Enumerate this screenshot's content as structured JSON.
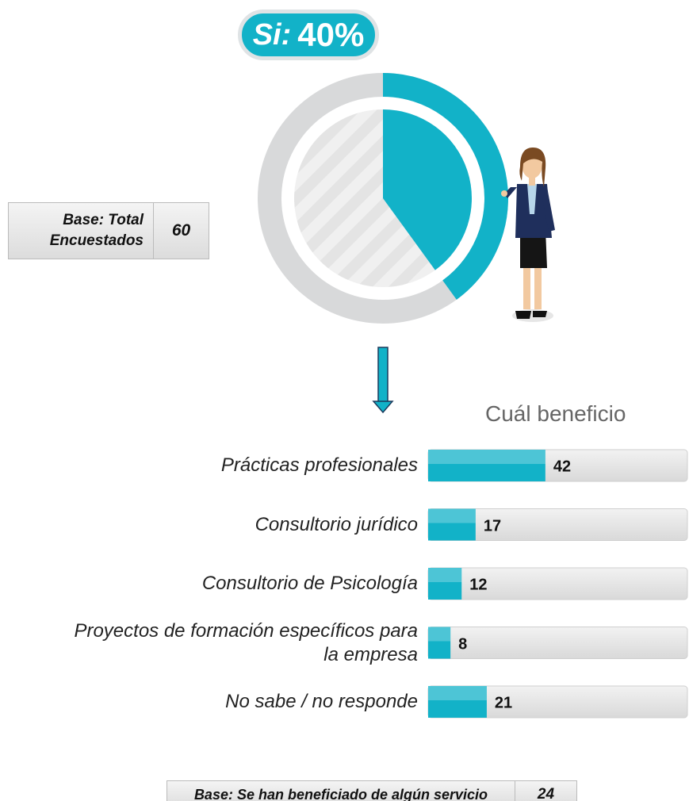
{
  "chart_data": [
    {
      "type": "donut",
      "categories": [
        "Si:"
      ],
      "values": [
        40
      ],
      "value_labels": [
        "40%"
      ],
      "color": "#12b2c8",
      "base": {
        "label": "Base: Total Encuestados",
        "value": 60
      }
    },
    {
      "type": "bar",
      "title": "Cuál beneficio",
      "categories": [
        "Prácticas profesionales",
        "Consultorio jurídico",
        "Consultorio de Psicología",
        "Proyectos de formación específicos para la empresa",
        "No sabe / no responde"
      ],
      "values": [
        42,
        17,
        12,
        8,
        21
      ],
      "xlim": [
        0,
        100
      ],
      "color": "#12b2c8",
      "base": {
        "label": "Base: Se han beneficiado de algún servicio",
        "value": 24
      }
    }
  ]
}
